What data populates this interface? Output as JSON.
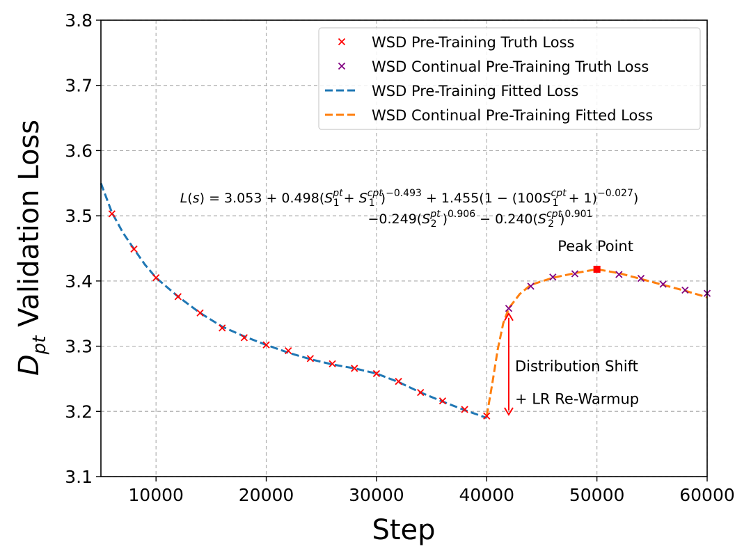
{
  "chart_data": {
    "type": "line",
    "xlabel": "Step",
    "ylabel": "D",
    "ylabel_sub": "pt",
    "ylabel_rest": " Validation Loss",
    "xlim": [
      5000,
      60000
    ],
    "ylim": [
      3.1,
      3.8
    ],
    "xticks": [
      10000,
      20000,
      30000,
      40000,
      50000,
      60000
    ],
    "xtick_labels": [
      "10000",
      "20000",
      "30000",
      "40000",
      "50000",
      "60000"
    ],
    "yticks": [
      3.1,
      3.2,
      3.3,
      3.4,
      3.5,
      3.6,
      3.7,
      3.8
    ],
    "ytick_labels": [
      "3.1",
      "3.2",
      "3.3",
      "3.4",
      "3.5",
      "3.6",
      "3.7",
      "3.8"
    ],
    "grid": true,
    "legend_position": "top-right",
    "series": [
      {
        "name": "WSD Pre-Training Truth Loss",
        "kind": "markers",
        "marker": "x",
        "color": "#ff0000",
        "x": [
          6000,
          8000,
          10000,
          12000,
          14000,
          16000,
          18000,
          20000,
          22000,
          24000,
          26000,
          28000,
          30000,
          32000,
          34000,
          36000,
          38000,
          40000
        ],
        "y": [
          3.503,
          3.449,
          3.405,
          3.376,
          3.351,
          3.328,
          3.313,
          3.302,
          3.293,
          3.281,
          3.273,
          3.266,
          3.258,
          3.246,
          3.229,
          3.216,
          3.203,
          3.193
        ]
      },
      {
        "name": "WSD Continual Pre-Training Truth Loss",
        "kind": "markers",
        "marker": "x",
        "color": "#800080",
        "x": [
          42000,
          44000,
          46000,
          48000,
          50000,
          52000,
          54000,
          56000,
          58000,
          60000
        ],
        "y": [
          3.358,
          3.392,
          3.406,
          3.411,
          3.418,
          3.41,
          3.404,
          3.395,
          3.386,
          3.381
        ]
      },
      {
        "name": "WSD Pre-Training Fitted Loss",
        "kind": "dashed-line",
        "color": "#1f77b4",
        "x": [
          5000,
          6000,
          7000,
          8000,
          9000,
          10000,
          12000,
          14000,
          16000,
          18000,
          20000,
          22000,
          24000,
          26000,
          28000,
          30000,
          32000,
          34000,
          36000,
          38000,
          40000
        ],
        "y": [
          3.55,
          3.505,
          3.474,
          3.449,
          3.425,
          3.405,
          3.376,
          3.351,
          3.33,
          3.315,
          3.302,
          3.29,
          3.28,
          3.272,
          3.266,
          3.258,
          3.245,
          3.229,
          3.215,
          3.202,
          3.19
        ]
      },
      {
        "name": "WSD Continual Pre-Training Fitted Loss",
        "kind": "dashed-line",
        "color": "#ff7f0e",
        "x": [
          40000,
          40500,
          41000,
          41500,
          42000,
          43000,
          44000,
          46000,
          48000,
          50000,
          52000,
          54000,
          56000,
          58000,
          60000
        ],
        "y": [
          3.193,
          3.242,
          3.295,
          3.335,
          3.358,
          3.38,
          3.394,
          3.405,
          3.412,
          3.418,
          3.412,
          3.403,
          3.394,
          3.385,
          3.375
        ]
      }
    ],
    "peak_point": {
      "x": 50000,
      "y": 3.418,
      "color": "#ff0000",
      "label": "Peak Point"
    },
    "arrow": {
      "x": 42000,
      "y_top": 3.35,
      "y_bottom": 3.195,
      "color": "#ff0000"
    },
    "annotation_line1": "Distribution Shift",
    "annotation_line2": "+ LR Re-Warmup",
    "formula_line1": "L(s) = 3.053 + 0.498(S1pt + S1cpt)−0.493 + 1.455(1 − (100S1cpt + 1)−0.027)",
    "formula_line2": "−0.249(S2pt)0.906 − 0.240(S2cpt)0.901"
  }
}
